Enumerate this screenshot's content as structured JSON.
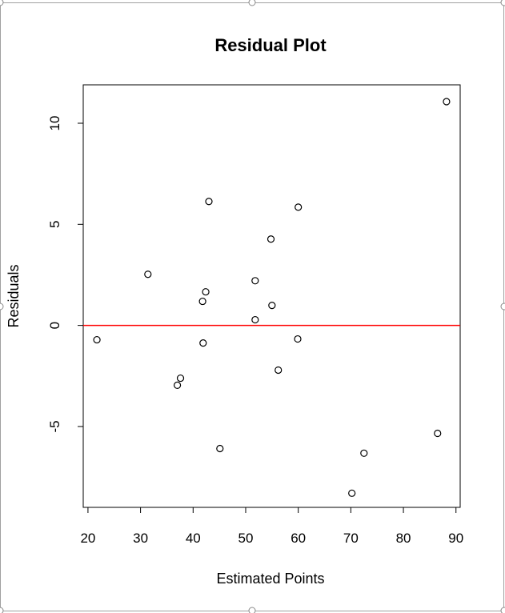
{
  "chart_data": {
    "type": "scatter",
    "title": "Residual Plot",
    "xlabel": "Estimated Points",
    "ylabel": "Residuals",
    "xlim": [
      19.1,
      90.8
    ],
    "ylim": [
      -9.0,
      11.9
    ],
    "xticks": [
      20,
      30,
      40,
      50,
      60,
      70,
      80,
      90
    ],
    "xtick_labels": [
      "20",
      "30",
      "40",
      "50",
      "60",
      "70",
      "80",
      "90"
    ],
    "yticks": [
      -5,
      0,
      5,
      10
    ],
    "ytick_labels": [
      "-5",
      "0",
      "5",
      "10"
    ],
    "grid": false,
    "reference_line": {
      "y": 0,
      "color": "#ff0000"
    },
    "marker": "open-circle",
    "points": [
      {
        "x": 21.7,
        "y": -0.71
      },
      {
        "x": 31.4,
        "y": 2.53
      },
      {
        "x": 37.0,
        "y": -2.96
      },
      {
        "x": 37.6,
        "y": -2.61
      },
      {
        "x": 41.8,
        "y": 1.19
      },
      {
        "x": 42.4,
        "y": 1.66
      },
      {
        "x": 41.9,
        "y": -0.87
      },
      {
        "x": 43.0,
        "y": 6.13
      },
      {
        "x": 45.1,
        "y": -6.09
      },
      {
        "x": 51.8,
        "y": 2.21
      },
      {
        "x": 51.8,
        "y": 0.28
      },
      {
        "x": 54.8,
        "y": 4.27
      },
      {
        "x": 55.0,
        "y": 0.99
      },
      {
        "x": 56.2,
        "y": -2.21
      },
      {
        "x": 60.0,
        "y": 5.85
      },
      {
        "x": 59.9,
        "y": -0.67
      },
      {
        "x": 70.2,
        "y": -8.3
      },
      {
        "x": 72.5,
        "y": -6.32
      },
      {
        "x": 86.5,
        "y": -5.34
      },
      {
        "x": 88.2,
        "y": 11.07
      }
    ]
  }
}
